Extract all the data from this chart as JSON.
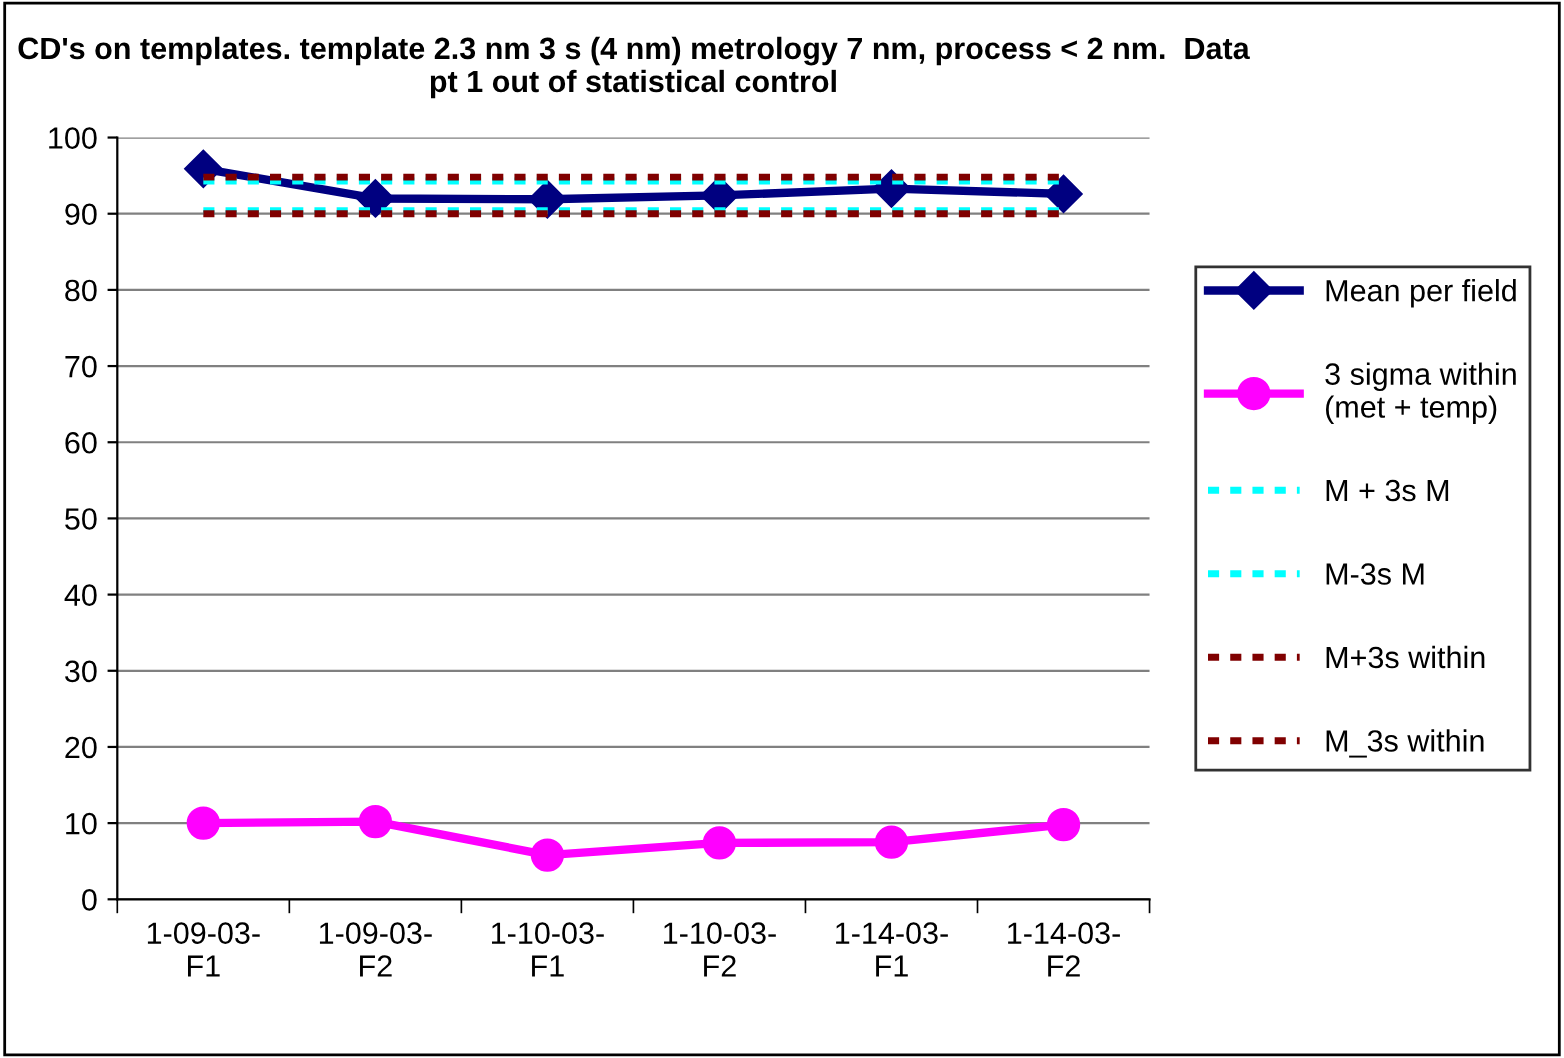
{
  "chart_data": {
    "type": "line",
    "title": "CD's on templates. template 2.3 nm 3 s (4 nm) metrology 7 nm, process < 2 nm.  Data pt 1 out of statistical control",
    "categories": [
      "1-09-03-\nF1",
      "1-09-03-\nF2",
      "1-10-03-\nF1",
      "1-10-03-\nF2",
      "1-14-03-\nF1",
      "1-14-03-\nF2"
    ],
    "series": [
      {
        "name": "Mean per field",
        "color": "#000080",
        "marker": "diamond",
        "line_style": "solid",
        "values": [
          95.9,
          92.0,
          91.9,
          92.4,
          93.3,
          92.6
        ]
      },
      {
        "name": "3 sigma within\n(met + temp)",
        "color": "#ff00ff",
        "marker": "circle",
        "line_style": "solid",
        "values": [
          10.0,
          10.2,
          5.8,
          7.4,
          7.5,
          9.8
        ]
      },
      {
        "name": "M + 3s M",
        "color": "#00ffff",
        "marker": "none",
        "line_style": "dashed",
        "values": [
          94.3,
          94.3,
          94.3,
          94.3,
          94.3,
          94.3
        ]
      },
      {
        "name": "M-3s M",
        "color": "#00ffff",
        "marker": "none",
        "line_style": "dashed",
        "values": [
          90.4,
          90.4,
          90.4,
          90.4,
          90.4,
          90.4
        ]
      },
      {
        "name": "M+3s within",
        "color": "#800000",
        "marker": "none",
        "line_style": "dashed",
        "values": [
          94.8,
          94.8,
          94.8,
          94.8,
          94.8,
          94.8
        ]
      },
      {
        "name": "M_3s within",
        "color": "#800000",
        "marker": "none",
        "line_style": "dashed",
        "values": [
          90.0,
          90.0,
          90.0,
          90.0,
          90.0,
          90.0
        ]
      }
    ],
    "ylim": [
      0,
      100
    ],
    "yticks": [
      0,
      10,
      20,
      30,
      40,
      50,
      60,
      70,
      80,
      90,
      100
    ],
    "grid": "y",
    "legend": "right"
  }
}
